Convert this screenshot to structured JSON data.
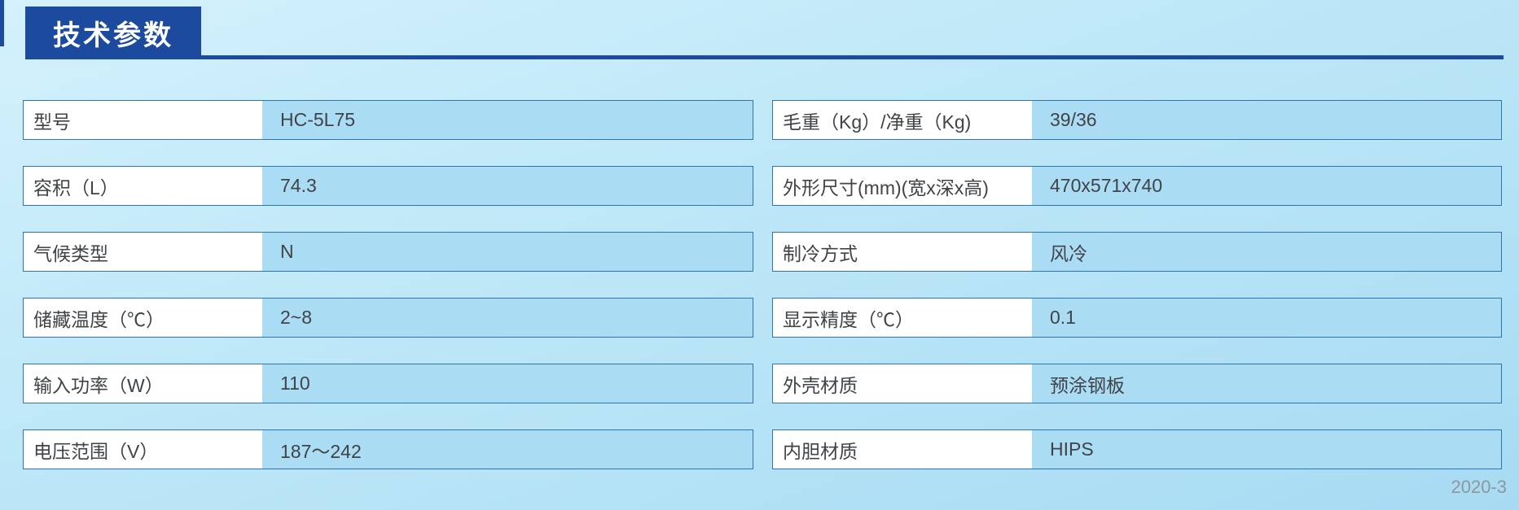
{
  "page": {
    "title": "技术参数",
    "footer": "2020-3"
  },
  "colors": {
    "accent": "#1b4a9e",
    "border": "#2e75b5",
    "cell": "#aadcf4",
    "text": "#404347",
    "footer": "#8f969c"
  },
  "spec_table": {
    "left_rows": [
      {
        "label": "型号",
        "value": "HC-5L75"
      },
      {
        "label": "容积（L）",
        "value": "74.3"
      },
      {
        "label": "气候类型",
        "value": "N"
      },
      {
        "label": "储藏温度（℃）",
        "value": "2~8"
      },
      {
        "label": "输入功率（W）",
        "value": "110"
      },
      {
        "label": "电压范围（V）",
        "value": "187～242"
      }
    ],
    "right_rows": [
      {
        "label": "毛重（Kg）/净重（Kg)",
        "value": "39/36"
      },
      {
        "label": "外形尺寸(mm)(宽x深x高)",
        "value": "470x571x740"
      },
      {
        "label": "制冷方式",
        "value": "风冷"
      },
      {
        "label": "显示精度（℃）",
        "value": "0.1"
      },
      {
        "label": "外壳材质",
        "value": "预涂钢板"
      },
      {
        "label": "内胆材质",
        "value": "HIPS"
      }
    ]
  }
}
